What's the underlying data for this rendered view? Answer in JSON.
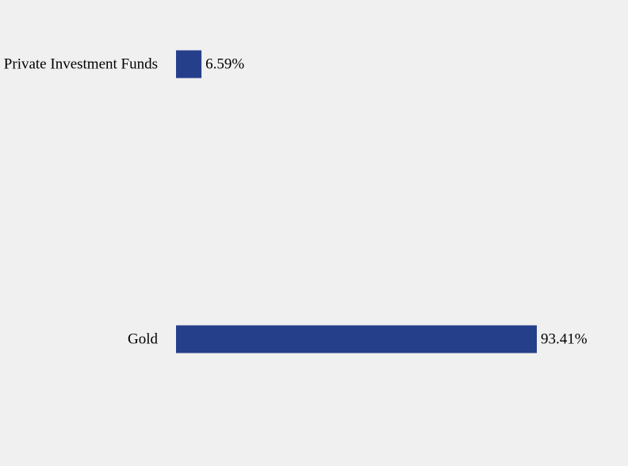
{
  "chart_data": {
    "type": "bar",
    "categories": [
      "Private Investment Funds",
      "Gold"
    ],
    "values": [
      6.59,
      93.41
    ],
    "value_labels": [
      "6.59%",
      "93.41%"
    ],
    "color": "#253f8a"
  }
}
